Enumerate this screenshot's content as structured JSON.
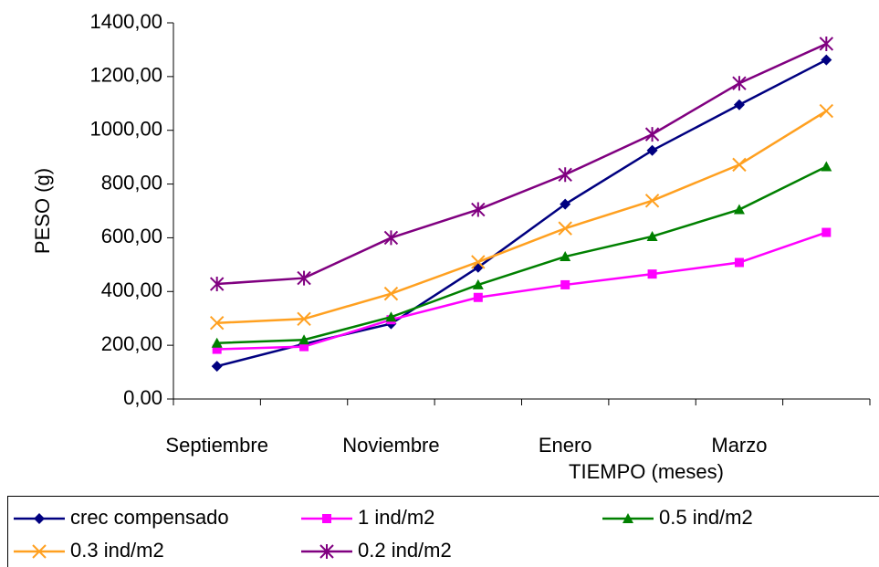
{
  "chart_data": {
    "type": "line",
    "y_label": "PESO (g)",
    "x_label": "TIEMPO (meses)",
    "categories": [
      "Septiembre",
      null,
      "Noviembre",
      null,
      "Enero",
      null,
      "Marzo",
      null
    ],
    "ylim": [
      0,
      1400
    ],
    "yticks": [
      {
        "value": 0,
        "label": "0,00"
      },
      {
        "value": 200,
        "label": "200,00"
      },
      {
        "value": 400,
        "label": "400,00"
      },
      {
        "value": 600,
        "label": "600,00"
      },
      {
        "value": 800,
        "label": "800,00"
      },
      {
        "value": 1000,
        "label": "1000,00"
      },
      {
        "value": 1200,
        "label": "1200,00"
      },
      {
        "value": 1400,
        "label": "1400,00"
      }
    ],
    "legend_position": "bottom",
    "series": [
      {
        "name": "crec compensado",
        "color": "#000080",
        "marker": "diamond",
        "values": [
          122,
          205,
          280,
          490,
          725,
          925,
          1095,
          1262
        ]
      },
      {
        "name": "1 ind/m2",
        "color": "#ff00ff",
        "marker": "square",
        "values": [
          185,
          195,
          295,
          378,
          425,
          465,
          508,
          620
        ]
      },
      {
        "name": "0.5 ind/m2",
        "color": "#008000",
        "marker": "triangle",
        "values": [
          208,
          220,
          305,
          425,
          530,
          605,
          705,
          865
        ]
      },
      {
        "name": "0.3 ind/m2",
        "color": "#ffa020",
        "marker": "x",
        "values": [
          283,
          298,
          392,
          510,
          635,
          738,
          872,
          1072
        ]
      },
      {
        "name": "0.2 ind/m2",
        "color": "#800080",
        "marker": "star",
        "values": [
          428,
          450,
          600,
          705,
          835,
          985,
          1175,
          1322
        ]
      }
    ]
  }
}
